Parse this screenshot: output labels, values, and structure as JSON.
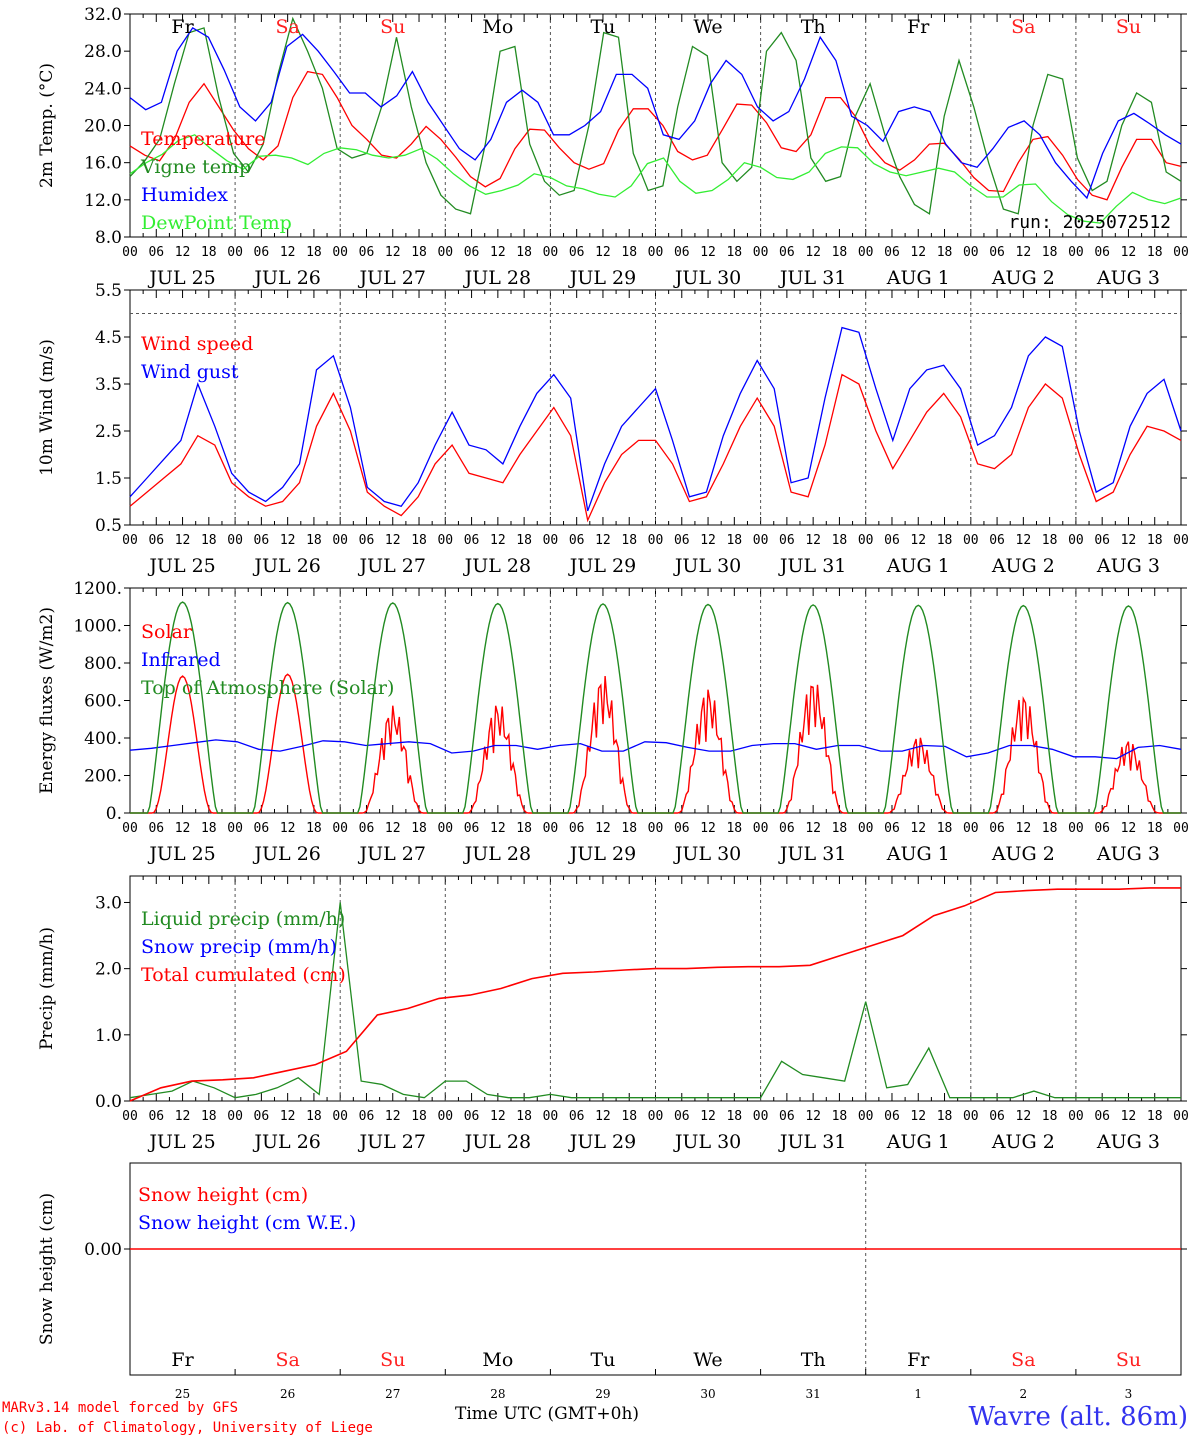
{
  "colors": {
    "red": "#ff0000",
    "green": "#228b22",
    "blue": "#0000ff",
    "lime": "#33ee33",
    "grid": "#555555",
    "axis": "#000000",
    "we_red": "#ff2020"
  },
  "days": {
    "weekday_labels": [
      "Fr",
      "Sa",
      "Su",
      "Mo",
      "Tu",
      "We",
      "Th",
      "Fr",
      "Sa",
      "Su"
    ],
    "weekend_flags": [
      false,
      true,
      true,
      false,
      false,
      false,
      false,
      false,
      true,
      true
    ],
    "date_labels": [
      "JUL 25",
      "JUL 26",
      "JUL 27",
      "JUL 28",
      "JUL 29",
      "JUL 30",
      "JUL 31",
      "AUG  1",
      "AUG  2",
      "AUG  3"
    ],
    "day_numbers": [
      "25",
      "26",
      "27",
      "28",
      "29",
      "30",
      "31",
      "1",
      "2",
      "3"
    ],
    "hour_labels": [
      "00",
      "06",
      "12",
      "18"
    ],
    "final_hour_label": "00"
  },
  "footer": {
    "credit_line1": "MARv3.14 model forced by GFS",
    "credit_line2": "(c) Lab. of Climatology, University of Liege",
    "time_axis_label": "Time UTC (GMT+0h)",
    "station": "Wavre (alt. 86m)"
  },
  "chart_data": [
    {
      "type": "line",
      "ylabel": "2m Temp. (°C)",
      "ylim": [
        8.0,
        32.0
      ],
      "yticks": [
        "8.0",
        "12.0",
        "16.0",
        "20.0",
        "24.0",
        "28.0",
        "32.0"
      ],
      "annotation": "run: 2025072512",
      "x": "hours since JUL 25 00 UTC (3-hourly)",
      "series": [
        {
          "name": "Temperature",
          "color": "red",
          "values": [
            17.8,
            16.8,
            16.2,
            18.5,
            22.5,
            24.5,
            22.0,
            19.5,
            17.5,
            16.3,
            17.8,
            23.0,
            25.8,
            25.5,
            23.0,
            20.0,
            18.5,
            16.8,
            16.5,
            18.0,
            19.9,
            18.5,
            16.6,
            14.5,
            13.4,
            14.3,
            17.5,
            19.6,
            19.5,
            17.6,
            16.0,
            15.3,
            15.9,
            19.5,
            21.8,
            21.8,
            20.0,
            17.2,
            16.3,
            16.8,
            19.5,
            22.3,
            22.2,
            20.3,
            17.6,
            17.2,
            19.0,
            23.0,
            23.0,
            21.0,
            17.8,
            16.0,
            15.2,
            16.3,
            18.0,
            18.1,
            16.4,
            14.4,
            13.0,
            12.9,
            16.0,
            18.5,
            18.8,
            16.8,
            14.2,
            12.5,
            12.0,
            15.5,
            18.5,
            18.5,
            16.0,
            15.6
          ]
        },
        {
          "name": "Vigne temp",
          "color": "green",
          "values": [
            14.5,
            16.2,
            18.5,
            24.5,
            30.0,
            30.5,
            23.0,
            17.0,
            15.0,
            18.0,
            25.5,
            31.5,
            28.0,
            24.0,
            17.5,
            16.5,
            17.0,
            22.0,
            29.5,
            22.0,
            16.0,
            12.5,
            11.0,
            10.5,
            18.0,
            28.0,
            28.5,
            18.0,
            14.0,
            12.5,
            13.0,
            20.0,
            30.0,
            29.5,
            17.0,
            13.0,
            13.5,
            22.0,
            28.5,
            27.5,
            16.0,
            14.0,
            15.5,
            28.0,
            30.0,
            27.0,
            16.5,
            14.0,
            14.5,
            21.0,
            24.5,
            19.0,
            14.5,
            11.5,
            10.5,
            21.0,
            27.0,
            22.0,
            16.0,
            11.0,
            10.5,
            20.0,
            25.5,
            25.0,
            16.5,
            13.0,
            14.0,
            20.0,
            23.5,
            22.5,
            15.0,
            14.0
          ]
        },
        {
          "name": "Humidex",
          "color": "blue",
          "values": [
            23.0,
            21.7,
            22.5,
            28.0,
            30.5,
            29.5,
            26.0,
            22.0,
            20.5,
            22.5,
            28.5,
            29.8,
            28.0,
            25.8,
            23.5,
            23.5,
            22.0,
            23.2,
            25.8,
            22.5,
            20.0,
            17.5,
            16.3,
            18.5,
            22.5,
            23.8,
            22.5,
            19.0,
            19.0,
            20.0,
            21.5,
            25.5,
            25.5,
            24.0,
            19.0,
            18.5,
            20.5,
            24.5,
            27.0,
            25.5,
            22.0,
            20.5,
            21.5,
            25.0,
            29.5,
            27.0,
            21.0,
            20.0,
            18.3,
            21.5,
            22.0,
            21.5,
            18.0,
            16.0,
            15.5,
            17.5,
            19.8,
            20.5,
            19.0,
            16.0,
            14.0,
            12.2,
            17.0,
            20.5,
            21.3,
            20.2,
            19.0,
            18.0
          ]
        },
        {
          "name": "DewPoint Temp",
          "color": "lime",
          "values": [
            14.8,
            16.0,
            16.9,
            18.4,
            19.0,
            17.5,
            16.2,
            15.3,
            16.7,
            16.8,
            16.5,
            15.8,
            17.0,
            17.6,
            17.4,
            16.8,
            16.5,
            16.8,
            17.5,
            16.4,
            14.8,
            13.5,
            12.6,
            13.0,
            13.6,
            14.8,
            14.4,
            13.5,
            13.2,
            12.6,
            12.3,
            13.5,
            15.9,
            16.5,
            14.0,
            12.7,
            13.0,
            14.2,
            16.0,
            15.5,
            14.4,
            14.2,
            15.0,
            17.0,
            17.7,
            17.6,
            15.9,
            15.0,
            14.6,
            15.0,
            15.4,
            15.0,
            13.5,
            12.3,
            12.3,
            13.6,
            13.7,
            11.8,
            10.4,
            9.7,
            9.5,
            11.3,
            12.8,
            12.0,
            11.6,
            12.2
          ]
        }
      ]
    },
    {
      "type": "line",
      "ylabel": "10m Wind (m/s)",
      "ylim": [
        0.5,
        5.5
      ],
      "yticks": [
        "0.5",
        "1.5",
        "2.5",
        "3.5",
        "4.5",
        "5.5"
      ],
      "reference_line": 5.0,
      "series": [
        {
          "name": "Wind speed",
          "color": "red",
          "values": [
            0.9,
            1.2,
            1.5,
            1.8,
            2.4,
            2.2,
            1.4,
            1.1,
            0.9,
            1.0,
            1.4,
            2.6,
            3.3,
            2.5,
            1.2,
            0.9,
            0.7,
            1.1,
            1.8,
            2.2,
            1.6,
            1.5,
            1.4,
            2.0,
            2.5,
            3.0,
            2.4,
            0.6,
            1.4,
            2.0,
            2.3,
            2.3,
            1.8,
            1.0,
            1.1,
            1.8,
            2.6,
            3.2,
            2.6,
            1.2,
            1.1,
            2.2,
            3.7,
            3.5,
            2.5,
            1.7,
            2.3,
            2.9,
            3.3,
            2.8,
            1.8,
            1.7,
            2.0,
            3.0,
            3.5,
            3.2,
            2.0,
            1.0,
            1.2,
            2.0,
            2.6,
            2.5,
            2.3
          ]
        },
        {
          "name": "Wind gust",
          "color": "blue",
          "values": [
            1.1,
            1.5,
            1.9,
            2.3,
            3.5,
            2.6,
            1.6,
            1.2,
            1.0,
            1.3,
            1.8,
            3.8,
            4.1,
            3.0,
            1.3,
            1.0,
            0.9,
            1.4,
            2.2,
            2.9,
            2.2,
            2.1,
            1.8,
            2.6,
            3.3,
            3.7,
            3.2,
            0.8,
            1.8,
            2.6,
            3.0,
            3.4,
            2.3,
            1.1,
            1.2,
            2.4,
            3.3,
            4.0,
            3.4,
            1.4,
            1.5,
            3.2,
            4.7,
            4.6,
            3.4,
            2.3,
            3.4,
            3.8,
            3.9,
            3.4,
            2.2,
            2.4,
            3.0,
            4.1,
            4.5,
            4.3,
            2.5,
            1.2,
            1.4,
            2.6,
            3.3,
            3.6,
            2.5
          ]
        }
      ]
    },
    {
      "type": "line",
      "ylabel": "Energy fluxes (W/m2)",
      "ylim": [
        0,
        1200
      ],
      "yticks": [
        "0.",
        "200.",
        "400.",
        "600.",
        "800.",
        "1000.",
        "1200."
      ],
      "series": [
        {
          "name": "Solar",
          "color": "red",
          "daily_peaks": [
            730,
            740,
            580,
            600,
            750,
            680,
            730,
            420,
            650,
            400
          ]
        },
        {
          "name": "Infrared",
          "color": "blue",
          "values": [
            335,
            345,
            360,
            375,
            390,
            380,
            340,
            330,
            355,
            385,
            380,
            360,
            370,
            380,
            370,
            320,
            330,
            360,
            360,
            340,
            360,
            370,
            330,
            330,
            380,
            375,
            350,
            330,
            330,
            360,
            370,
            370,
            340,
            360,
            360,
            330,
            330,
            360,
            355,
            300,
            320,
            360,
            360,
            340,
            300,
            300,
            290,
            350,
            360,
            340
          ]
        },
        {
          "name": "Top of Atmosphere (Solar)",
          "color": "green",
          "daily_peaks": [
            1125,
            1122,
            1120,
            1117,
            1115,
            1112,
            1110,
            1108,
            1106,
            1104
          ]
        }
      ]
    },
    {
      "type": "line",
      "ylabel": "Precip (mm/h)",
      "ylim": [
        0,
        3.4
      ],
      "yticks": [
        "0.0",
        "1.0",
        "2.0",
        "3.0"
      ],
      "series": [
        {
          "name": "Liquid precip (mm/h)",
          "color": "green",
          "values": [
            0.05,
            0.1,
            0.15,
            0.3,
            0.2,
            0.05,
            0.1,
            0.2,
            0.35,
            0.1,
            3.0,
            0.3,
            0.25,
            0.1,
            0.05,
            0.3,
            0.3,
            0.1,
            0.05,
            0.05,
            0.1,
            0.05,
            0.05,
            0.05,
            0.05,
            0.05,
            0.05,
            0.05,
            0.05,
            0.05,
            0.05,
            0.6,
            0.4,
            0.35,
            0.3,
            1.5,
            0.2,
            0.25,
            0.8,
            0.05,
            0.05,
            0.05,
            0.05,
            0.15,
            0.05,
            0.05,
            0.05,
            0.05,
            0.05,
            0.05,
            0.05
          ]
        },
        {
          "name": "Snow precip (mm/h)",
          "color": "blue",
          "values": [
            0.0
          ]
        },
        {
          "name": "Total cumulated (cm)",
          "color": "red",
          "values": [
            0.0,
            0.2,
            0.3,
            0.32,
            0.35,
            0.45,
            0.55,
            0.75,
            1.3,
            1.4,
            1.55,
            1.6,
            1.7,
            1.85,
            1.93,
            1.95,
            1.98,
            2.0,
            2.0,
            2.02,
            2.03,
            2.03,
            2.05,
            2.2,
            2.35,
            2.5,
            2.8,
            2.95,
            3.15,
            3.18,
            3.2,
            3.2,
            3.2,
            3.22,
            3.22
          ]
        }
      ]
    },
    {
      "type": "line",
      "ylabel": "Snow height (cm)",
      "yticks": [
        "0.00"
      ],
      "series": [
        {
          "name": "Snow height (cm)",
          "color": "red",
          "values": [
            0.0,
            0.0
          ]
        },
        {
          "name": "Snow height (cm W.E.)",
          "color": "blue",
          "values": [
            0.0,
            0.0
          ]
        }
      ]
    }
  ]
}
